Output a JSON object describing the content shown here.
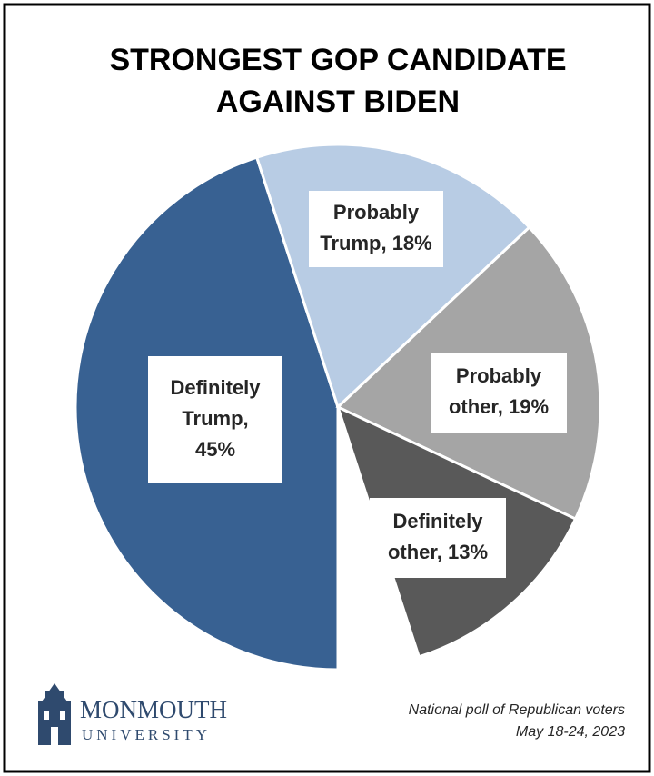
{
  "chart_data": {
    "type": "pie",
    "title": [
      "STRONGEST GOP CANDIDATE",
      "AGAINST BIDEN"
    ],
    "values": [
      45,
      18,
      19,
      13
    ],
    "value_labels": [
      [
        "Definitely",
        "Trump,",
        "45%"
      ],
      [
        "Probably",
        "Trump, 18%"
      ],
      [
        "Probably",
        "other, 19%"
      ],
      [
        "Definitely",
        "other, 13%"
      ]
    ],
    "colors": [
      "#386192",
      "#b8cce4",
      "#a5a5a5",
      "#595959"
    ]
  },
  "logo": {
    "name": "MONMOUTH",
    "sub": "UNIVERSITY"
  },
  "note": [
    "National poll of Republican voters",
    "May 18-24, 2023"
  ]
}
